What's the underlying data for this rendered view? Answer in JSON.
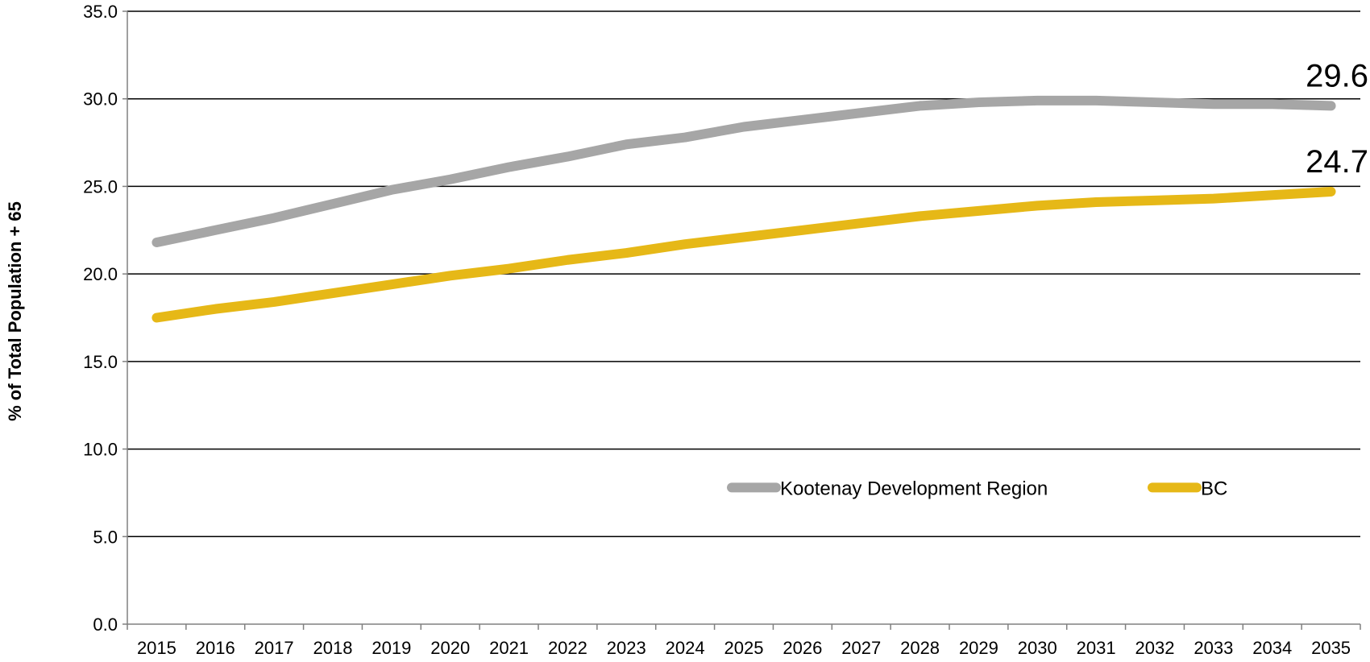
{
  "chart_data": {
    "type": "line",
    "title": "",
    "xlabel": "",
    "ylabel": "% of Total Population + 65",
    "ylim": [
      0,
      35
    ],
    "yticks": [
      "0.0",
      "5.0",
      "10.0",
      "15.0",
      "20.0",
      "25.0",
      "30.0",
      "35.0"
    ],
    "grid": "horizontal",
    "legend_position": "bottom-right-inside",
    "categories": [
      "2015",
      "2016",
      "2017",
      "2018",
      "2019",
      "2020",
      "2021",
      "2022",
      "2023",
      "2024",
      "2025",
      "2026",
      "2027",
      "2028",
      "2029",
      "2030",
      "2031",
      "2032",
      "2033",
      "2034",
      "2035"
    ],
    "series": [
      {
        "name": "Kootenay Development Region",
        "color": "#A6A6A6",
        "values": [
          21.8,
          22.5,
          23.2,
          24.0,
          24.8,
          25.4,
          26.1,
          26.7,
          27.4,
          27.8,
          28.4,
          28.8,
          29.2,
          29.6,
          29.8,
          29.9,
          29.9,
          29.8,
          29.7,
          29.7,
          29.6
        ],
        "end_label": "29.6"
      },
      {
        "name": "BC",
        "color": "#E6B817",
        "values": [
          17.5,
          18.0,
          18.4,
          18.9,
          19.4,
          19.9,
          20.3,
          20.8,
          21.2,
          21.7,
          22.1,
          22.5,
          22.9,
          23.3,
          23.6,
          23.9,
          24.1,
          24.2,
          24.3,
          24.5,
          24.7
        ],
        "end_label": "24.7"
      }
    ]
  }
}
